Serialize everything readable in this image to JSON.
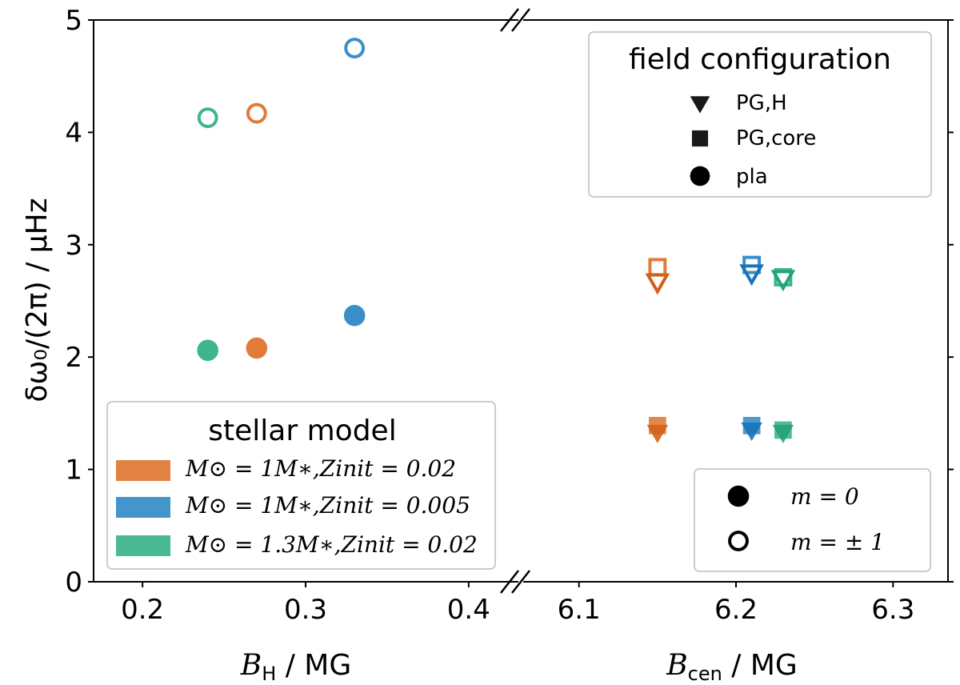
{
  "chart_data": {
    "type": "scatter",
    "ylabel": "δω₀/(2π) / μHz",
    "ylim": [
      0,
      5
    ],
    "yticks": [
      "0",
      "1",
      "2",
      "3",
      "4",
      "5"
    ],
    "left_panel": {
      "xlabel_main": "B",
      "xlabel_sub": "H",
      "xlabel_unit": " / MG",
      "xlim": [
        0.17,
        0.43
      ],
      "xticks": [
        "0.2",
        "0.3",
        "0.4"
      ]
    },
    "right_panel": {
      "xlabel_main": "B",
      "xlabel_sub": "cen",
      "xlabel_unit": " / MG",
      "xlim": [
        6.065,
        6.335
      ],
      "xticks": [
        "6.1",
        "6.2",
        "6.3"
      ]
    },
    "colors": {
      "orange": "#e07b39",
      "blue": "#3a8fc9",
      "green": "#3fb58e",
      "orange_dark": "#d2601a",
      "blue_dark": "#1a73b8",
      "green_dark": "#22a37a"
    },
    "points": [
      {
        "panel": "left",
        "x": 0.24,
        "y": 2.06,
        "marker": "circle",
        "filled": true,
        "color": "green"
      },
      {
        "panel": "left",
        "x": 0.27,
        "y": 2.08,
        "marker": "circle",
        "filled": true,
        "color": "orange"
      },
      {
        "panel": "left",
        "x": 0.33,
        "y": 2.37,
        "marker": "circle",
        "filled": true,
        "color": "blue"
      },
      {
        "panel": "left",
        "x": 0.24,
        "y": 4.13,
        "marker": "circle",
        "filled": false,
        "color": "green"
      },
      {
        "panel": "left",
        "x": 0.27,
        "y": 4.17,
        "marker": "circle",
        "filled": false,
        "color": "orange"
      },
      {
        "panel": "left",
        "x": 0.33,
        "y": 4.75,
        "marker": "circle",
        "filled": false,
        "color": "blue"
      },
      {
        "panel": "right",
        "x": 6.15,
        "y": 1.39,
        "marker": "square",
        "filled": true,
        "color": "orange"
      },
      {
        "panel": "right",
        "x": 6.15,
        "y": 1.33,
        "marker": "triangle",
        "filled": true,
        "color": "orange_dark"
      },
      {
        "panel": "right",
        "x": 6.21,
        "y": 1.39,
        "marker": "square",
        "filled": true,
        "color": "blue"
      },
      {
        "panel": "right",
        "x": 6.21,
        "y": 1.35,
        "marker": "triangle",
        "filled": true,
        "color": "blue_dark"
      },
      {
        "panel": "right",
        "x": 6.23,
        "y": 1.35,
        "marker": "square",
        "filled": true,
        "color": "green"
      },
      {
        "panel": "right",
        "x": 6.23,
        "y": 1.33,
        "marker": "triangle",
        "filled": true,
        "color": "green_dark"
      },
      {
        "panel": "right",
        "x": 6.15,
        "y": 2.8,
        "marker": "square",
        "filled": false,
        "color": "orange"
      },
      {
        "panel": "right",
        "x": 6.15,
        "y": 2.67,
        "marker": "triangle",
        "filled": false,
        "color": "orange_dark"
      },
      {
        "panel": "right",
        "x": 6.21,
        "y": 2.82,
        "marker": "square",
        "filled": false,
        "color": "blue"
      },
      {
        "panel": "right",
        "x": 6.21,
        "y": 2.75,
        "marker": "triangle",
        "filled": false,
        "color": "blue_dark"
      },
      {
        "panel": "right",
        "x": 6.23,
        "y": 2.71,
        "marker": "square",
        "filled": false,
        "color": "green"
      },
      {
        "panel": "right",
        "x": 6.23,
        "y": 2.7,
        "marker": "triangle",
        "filled": false,
        "color": "green_dark"
      }
    ],
    "legend_field": {
      "title": "field configuration",
      "placement": "upper-right",
      "entries": [
        {
          "marker": "triangle",
          "label": "PG,H"
        },
        {
          "marker": "square",
          "label": "PG,core"
        },
        {
          "marker": "circle",
          "label": "pla"
        }
      ]
    },
    "legend_model": {
      "title": "stellar model",
      "placement": "lower-left",
      "entries": [
        {
          "color": "orange",
          "label": "M⊙ = 1M∗,Zinit = 0.02"
        },
        {
          "color": "blue",
          "label": "M⊙ = 1M∗,Zinit = 0.005"
        },
        {
          "color": "green",
          "label": "M⊙ = 1.3M∗,Zinit = 0.02"
        }
      ]
    },
    "legend_m": {
      "placement": "lower-right",
      "entries": [
        {
          "filled": true,
          "label": "m = 0"
        },
        {
          "filled": false,
          "label": "m = ± 1"
        }
      ]
    }
  }
}
